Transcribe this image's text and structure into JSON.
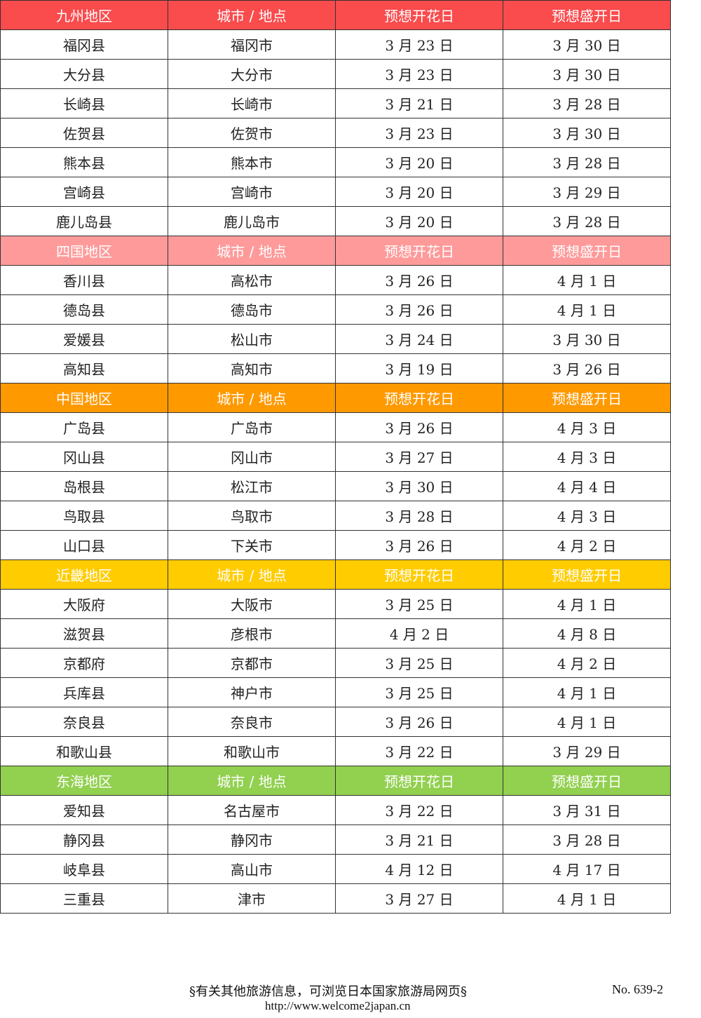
{
  "columns": [
    "城市 / 地点",
    "预想开花日",
    "预想盛开日"
  ],
  "regions": [
    {
      "name": "九州地区",
      "color": "#FA4B4D",
      "rows": [
        [
          "福冈县",
          "福冈市",
          "3 月 23 日",
          "3 月 30 日"
        ],
        [
          "大分县",
          "大分市",
          "3 月 23 日",
          "3 月 30 日"
        ],
        [
          "长崎县",
          "长崎市",
          "3 月 21 日",
          "3 月 28 日"
        ],
        [
          "佐贺县",
          "佐贺市",
          "3 月 23 日",
          "3 月 30 日"
        ],
        [
          "熊本县",
          "熊本市",
          "3 月 20 日",
          "3 月 28 日"
        ],
        [
          "宫崎县",
          "宫崎市",
          "3 月 20 日",
          "3 月 29 日"
        ],
        [
          "鹿儿岛县",
          "鹿儿岛市",
          "3 月 20 日",
          "3 月 28 日"
        ]
      ]
    },
    {
      "name": "四国地区",
      "color": "#FF9A9A",
      "rows": [
        [
          "香川县",
          "高松市",
          "3 月 26 日",
          "4 月 1 日"
        ],
        [
          "德岛县",
          "德岛市",
          "3 月 26 日",
          "4 月 1 日"
        ],
        [
          "爱媛县",
          "松山市",
          "3 月 24 日",
          "3 月 30 日"
        ],
        [
          "高知县",
          "高知市",
          "3 月 19 日",
          "3 月 26 日"
        ]
      ]
    },
    {
      "name": "中国地区",
      "color": "#FF9900",
      "rows": [
        [
          "广岛县",
          "广岛市",
          "3 月 26 日",
          "4 月 3 日"
        ],
        [
          "冈山县",
          "冈山市",
          "3 月 27 日",
          "4 月 3 日"
        ],
        [
          "岛根县",
          "松江市",
          "3 月 30 日",
          "4 月 4 日"
        ],
        [
          "鸟取县",
          "鸟取市",
          "3 月 28 日",
          "4 月 3 日"
        ],
        [
          "山口县",
          "下关市",
          "3 月 26 日",
          "4 月 2 日"
        ]
      ]
    },
    {
      "name": "近畿地区",
      "color": "#FFCC00",
      "rows": [
        [
          "大阪府",
          "大阪市",
          "3 月 25 日",
          "4 月 1 日"
        ],
        [
          "滋贺县",
          "彦根市",
          "4 月 2 日",
          "4 月 8 日"
        ],
        [
          "京都府",
          "京都市",
          "3 月 25 日",
          "4 月 2 日"
        ],
        [
          "兵库县",
          "神户市",
          "3 月 25 日",
          "4 月 1 日"
        ],
        [
          "奈良县",
          "奈良市",
          "3 月 26 日",
          "4 月 1 日"
        ],
        [
          "和歌山县",
          "和歌山市",
          "3 月 22 日",
          "3 月 29 日"
        ]
      ]
    },
    {
      "name": "东海地区",
      "color": "#92D050",
      "rows": [
        [
          "爱知县",
          "名古屋市",
          "3 月 22 日",
          "3 月 31 日"
        ],
        [
          "静冈县",
          "静冈市",
          "3 月 21 日",
          "3 月 28 日"
        ],
        [
          "岐阜县",
          "高山市",
          "4 月 12 日",
          "4 月 17 日"
        ],
        [
          "三重县",
          "津市",
          "3 月 27 日",
          "4 月 1 日"
        ]
      ]
    }
  ],
  "footer": {
    "note": "§有关其他旅游信息，可浏览日本国家旅游局网页§",
    "url": "http://www.welcome2japan.cn",
    "page_no": "No. 639-2"
  }
}
